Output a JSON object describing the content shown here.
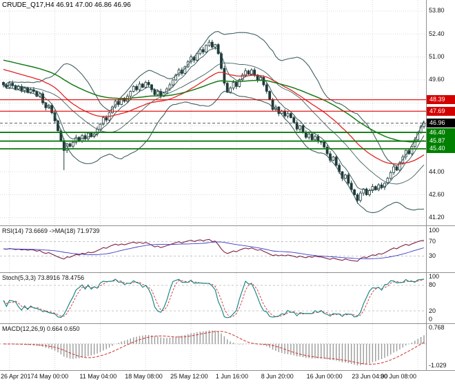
{
  "title_line": "CRUDE_Q17,H4 46.91 47.00 46.86 46.96",
  "panels": {
    "rsi_label": "RSI(14) 73.6669 ->MA(18) 71.9739",
    "stoch_label": "Stoch(5,3,3) 73.8916 78.4756",
    "macd_label": "MACD(12,26,9) 0.664 0.650"
  },
  "price_axis": {
    "visible_ticks": [
      "53.80",
      "52.40",
      "51.00",
      "49.60",
      "44.00",
      "42.60",
      "41.20"
    ],
    "badges": [
      {
        "label": "48.39",
        "value": 48.39,
        "color": "#d40000"
      },
      {
        "label": "47.69",
        "value": 47.69,
        "color": "#d40000"
      },
      {
        "label": "46.96",
        "value": 46.96,
        "color": "#000000"
      },
      {
        "label": "46.40",
        "value": 46.4,
        "color": "#008000"
      },
      {
        "label": "45.87",
        "value": 45.87,
        "color": "#008000"
      },
      {
        "label": "45.40",
        "value": 45.4,
        "color": "#008000"
      }
    ]
  },
  "rsi_axis": [
    "100",
    "70",
    "30"
  ],
  "stoch_axis": [
    "100",
    "80",
    "20",
    "0"
  ],
  "macd_axis": [
    "0.768",
    "-1.029"
  ],
  "time_axis": {
    "labels": [
      "26 Apr 2017",
      "4 May 00:00",
      "11 May 04:00",
      "18 May 08:00",
      "25 May 12:00",
      "1 Jun 16:00",
      "8 Jun 20:00",
      "16 Jun 00:00",
      "23 Jun 04:00",
      "30 Jun 08:00"
    ]
  },
  "colors": {
    "grid": "#d8d8d8",
    "candle": "#1e3a3a",
    "bollinger": "#3f5f5f",
    "ma_red": "#e22222",
    "ma_green": "#157a15",
    "red_level": "#e00000",
    "green_level": "#0c7a0c",
    "current_price_line": "#555555",
    "rsi": "#7c1f45",
    "rsi_ma": "#3939c8",
    "stoch_k": "#0d7d7d",
    "stoch_d": "#d03030",
    "macd_hist": "#9a9a9a",
    "macd_signal": "#d03030"
  },
  "chart_data": [
    {
      "type": "candlestick",
      "title": "CRUDE_Q17,H4",
      "ohlc_current": {
        "open": 46.91,
        "high": 47.0,
        "low": 46.86,
        "close": 46.96
      },
      "ylim": [
        41.2,
        53.8
      ],
      "y_tick_step": 1.4,
      "x_tick_labels": [
        "26 Apr 2017",
        "4 May 00:00",
        "11 May 04:00",
        "18 May 08:00",
        "25 May 12:00",
        "1 Jun 16:00",
        "8 Jun 20:00",
        "16 Jun 00:00",
        "23 Jun 04:00",
        "30 Jun 08:00"
      ],
      "first_open": 49.45,
      "closes": [
        49.3,
        49.15,
        49.4,
        49.25,
        49.05,
        49.2,
        48.95,
        49.1,
        48.85,
        49.0,
        48.9,
        48.6,
        48.75,
        48.2,
        47.9,
        48.05,
        47.6,
        47.1,
        46.5,
        45.9,
        45.3,
        45.7,
        45.55,
        45.8,
        46.1,
        45.85,
        46.2,
        46.0,
        46.35,
        46.15,
        46.3,
        46.6,
        46.9,
        47.3,
        47.15,
        47.6,
        47.95,
        48.3,
        48.1,
        48.45,
        48.3,
        48.6,
        48.9,
        49.2,
        49.0,
        49.35,
        49.15,
        49.45,
        49.3,
        49.0,
        48.7,
        48.9,
        48.6,
        48.8,
        49.05,
        49.3,
        49.6,
        49.9,
        50.2,
        50.0,
        50.4,
        50.7,
        51.0,
        50.8,
        51.2,
        51.45,
        51.3,
        51.7,
        51.9,
        51.6,
        51.75,
        51.2,
        50.3,
        49.4,
        48.85,
        49.1,
        49.45,
        49.2,
        49.6,
        49.9,
        50.15,
        49.95,
        50.2,
        49.9,
        49.6,
        49.75,
        49.3,
        48.9,
        48.4,
        47.8,
        47.95,
        47.55,
        47.7,
        47.4,
        47.55,
        47.3,
        47.0,
        46.6,
        46.8,
        46.4,
        46.1,
        46.3,
        45.95,
        46.15,
        45.85,
        45.8,
        45.5,
        45.1,
        44.7,
        44.9,
        44.4,
        44.0,
        43.6,
        43.8,
        43.3,
        42.9,
        42.6,
        42.25,
        42.7,
        42.95,
        42.6,
        42.85,
        43.1,
        42.9,
        43.2,
        43.05,
        43.3,
        43.6,
        43.95,
        44.3,
        44.1,
        44.55,
        44.9,
        45.3,
        45.1,
        45.55,
        45.95,
        46.4,
        46.75,
        46.96
      ],
      "wick_overrides": {
        "20": {
          "low": 44.1
        },
        "68": {
          "high": 52.05
        },
        "117": {
          "low": 42.05
        }
      },
      "levels": {
        "red": [
          48.39,
          47.69
        ],
        "green": [
          46.4,
          45.87,
          45.4
        ],
        "current_price": 46.96
      },
      "overlays": [
        "Bollinger Bands",
        "MA red",
        "MA green"
      ]
    },
    {
      "type": "line",
      "name": "RSI",
      "params": "14",
      "value": 73.6669,
      "ma": {
        "period": 18,
        "value": 71.9739
      },
      "levels": [
        70,
        30
      ],
      "ylim": [
        0,
        100
      ]
    },
    {
      "type": "line",
      "name": "Stochastic",
      "params": "5,3,3",
      "values": [
        73.8916,
        78.4756
      ],
      "levels": [
        80,
        20
      ],
      "ylim": [
        0,
        100
      ]
    },
    {
      "type": "histogram",
      "name": "MACD",
      "params": "12,26,9",
      "values": [
        0.664,
        0.65
      ],
      "y_ticks": [
        0.768,
        -1.029
      ]
    }
  ]
}
